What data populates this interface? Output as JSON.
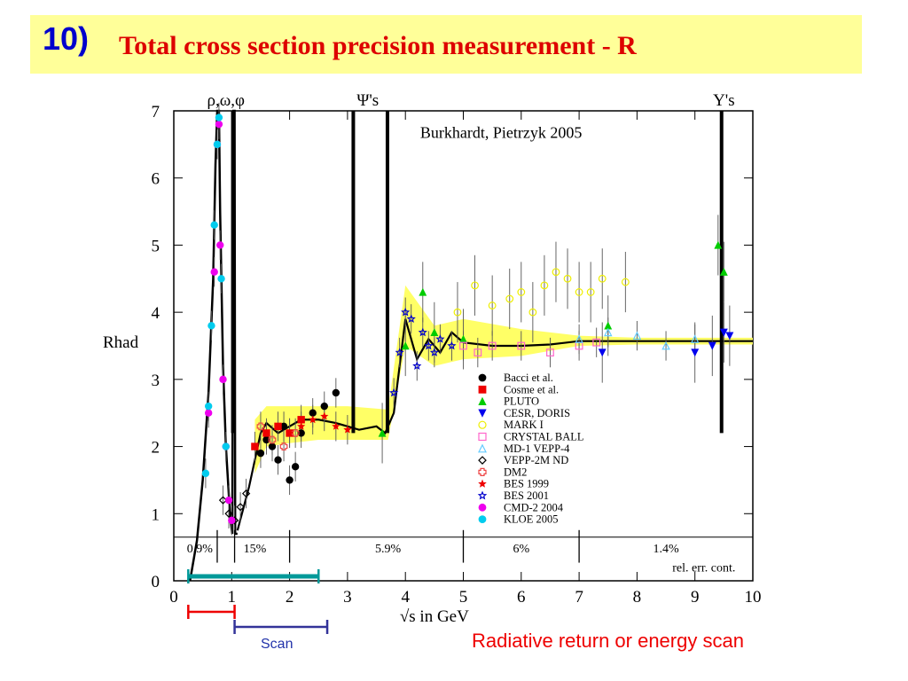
{
  "title": {
    "number": "10)",
    "text": "Total cross section precision measurement - R"
  },
  "chart_data": {
    "type": "scatter",
    "title": "Burkhardt, Pietrzyk 2005",
    "xlabel": "√s in GeV",
    "ylabel": "Rhad",
    "xlim": [
      0,
      10
    ],
    "ylim": [
      0,
      7
    ],
    "xticks": [
      0,
      1,
      2,
      3,
      4,
      5,
      6,
      7,
      8,
      9,
      10
    ],
    "yticks": [
      0,
      1,
      2,
      3,
      4,
      5,
      6,
      7
    ],
    "resonance_labels": [
      {
        "text": "ρ,ω,φ",
        "x": 0.9
      },
      {
        "text": "Ψ's",
        "x": 3.35
      },
      {
        "text": "Υ's",
        "x": 9.5
      }
    ],
    "error_contributions": {
      "label": "rel. err. cont.",
      "regions": [
        {
          "text": "0.9%",
          "x": 0.45
        },
        {
          "text": "15%",
          "x": 1.4
        },
        {
          "text": "5.9%",
          "x": 3.7
        },
        {
          "text": "6%",
          "x": 6.0
        },
        {
          "text": "1.4%",
          "x": 8.5
        }
      ],
      "dividers": [
        0.75,
        1.05,
        2.0,
        5.0,
        7.0
      ]
    },
    "legend": {
      "position": "center-right",
      "entries": [
        {
          "name": "Bacci et al.",
          "marker": "circle-filled",
          "color": "#000000"
        },
        {
          "name": "Cosme et al.",
          "marker": "square-filled",
          "color": "#ee0000"
        },
        {
          "name": "PLUTO",
          "marker": "triangle-up-filled",
          "color": "#00cc00"
        },
        {
          "name": "CESR, DORIS",
          "marker": "triangle-down-filled",
          "color": "#0000ee"
        },
        {
          "name": "MARK I",
          "marker": "circle-open",
          "color": "#eeee00"
        },
        {
          "name": "CRYSTAL BALL",
          "marker": "square-open",
          "color": "#ff66cc"
        },
        {
          "name": "MD-1 VEPP-4",
          "marker": "triangle-up-open",
          "color": "#66ccff"
        },
        {
          "name": "VEPP-2M ND",
          "marker": "diamond-open",
          "color": "#000000"
        },
        {
          "name": "DM2",
          "marker": "cross-open",
          "color": "#ee4444"
        },
        {
          "name": "BES 1999",
          "marker": "star-filled",
          "color": "#ee0000"
        },
        {
          "name": "BES 2001",
          "marker": "star-open",
          "color": "#0000cc"
        },
        {
          "name": "CMD-2 2004",
          "marker": "circle-filled",
          "color": "#ee00ee"
        },
        {
          "name": "KLOE 2005",
          "marker": "circle-filled",
          "color": "#00ccee"
        }
      ]
    },
    "theory_curve": {
      "x": [
        1.1,
        1.3,
        1.5,
        1.6,
        1.8,
        2.0,
        2.2,
        2.5,
        2.8,
        3.0,
        3.2,
        3.5,
        3.65,
        3.8,
        4.0,
        4.2,
        4.4,
        4.6,
        4.8,
        5.0,
        5.5,
        6.0,
        6.5,
        7.0,
        8.0,
        9.0,
        9.5,
        10.0
      ],
      "y": [
        0.75,
        1.4,
        2.2,
        2.35,
        2.2,
        2.3,
        2.4,
        2.4,
        2.35,
        2.3,
        2.25,
        2.3,
        2.2,
        2.5,
        3.9,
        3.3,
        3.6,
        3.4,
        3.7,
        3.55,
        3.5,
        3.5,
        3.52,
        3.57,
        3.57,
        3.57,
        3.57,
        3.57
      ],
      "color": "#000000"
    },
    "uncertainty_band": {
      "x": [
        1.4,
        1.6,
        2.0,
        2.5,
        3.0,
        3.7,
        4.0,
        4.5,
        5.0,
        6.0,
        7.0,
        8.0,
        10.0
      ],
      "lower": [
        1.6,
        2.0,
        2.05,
        2.1,
        2.1,
        2.1,
        3.5,
        3.2,
        3.3,
        3.35,
        3.5,
        3.52,
        3.52
      ],
      "upper": [
        2.4,
        2.6,
        2.6,
        2.6,
        2.6,
        2.55,
        4.4,
        3.8,
        3.9,
        3.75,
        3.65,
        3.62,
        3.62
      ],
      "color": "#ffff66"
    },
    "resonance_spikes": [
      {
        "x": 0.77,
        "note": "rho/omega peak off scale"
      },
      {
        "x": 1.02,
        "note": "phi peak"
      },
      {
        "x": 3.1,
        "note": "J/psi"
      },
      {
        "x": 3.69,
        "note": "psi(2S)"
      },
      {
        "x": 9.46,
        "note": "Upsilon"
      }
    ],
    "series": [
      {
        "name": "Bacci et al.",
        "x": [
          1.5,
          1.6,
          1.7,
          1.8,
          1.9,
          2.0,
          2.1,
          2.2,
          2.4,
          2.6,
          2.8
        ],
        "y": [
          1.9,
          2.1,
          2.0,
          1.8,
          2.3,
          1.5,
          1.7,
          2.2,
          2.5,
          2.6,
          2.8
        ]
      },
      {
        "name": "Cosme et al.",
        "x": [
          1.4,
          1.6,
          1.8,
          2.0,
          2.2
        ],
        "y": [
          2.0,
          2.2,
          2.3,
          2.2,
          2.4
        ]
      },
      {
        "name": "PLUTO",
        "x": [
          3.6,
          4.0,
          4.3,
          4.5,
          5.0,
          7.5,
          9.4,
          9.5
        ],
        "y": [
          2.2,
          3.5,
          4.3,
          3.7,
          3.6,
          3.8,
          5.0,
          4.6
        ]
      },
      {
        "name": "CESR, DORIS",
        "x": [
          7.4,
          9.0,
          9.3,
          9.5,
          9.6
        ],
        "y": [
          3.4,
          3.4,
          3.5,
          3.7,
          3.65
        ]
      },
      {
        "name": "MARK I",
        "x": [
          4.9,
          5.2,
          5.5,
          5.8,
          6.0,
          6.2,
          6.4,
          6.6,
          6.8,
          7.0,
          7.2,
          7.4,
          7.8
        ],
        "y": [
          4.0,
          4.4,
          4.1,
          4.2,
          4.3,
          4.0,
          4.4,
          4.6,
          4.5,
          4.3,
          4.3,
          4.5,
          4.45
        ]
      },
      {
        "name": "CRYSTAL BALL",
        "x": [
          5.0,
          5.25,
          5.5,
          6.0,
          6.5,
          7.0,
          7.3
        ],
        "y": [
          3.5,
          3.4,
          3.5,
          3.5,
          3.4,
          3.5,
          3.55
        ]
      },
      {
        "name": "MD-1 VEPP-4",
        "x": [
          7.0,
          7.5,
          8.0,
          8.5,
          9.0
        ],
        "y": [
          3.6,
          3.7,
          3.65,
          3.5,
          3.6
        ]
      },
      {
        "name": "VEPP-2M ND",
        "x": [
          0.85,
          0.95,
          1.05,
          1.15,
          1.25
        ],
        "y": [
          1.2,
          1.0,
          0.9,
          1.1,
          1.3
        ]
      },
      {
        "name": "DM2",
        "x": [
          1.5,
          1.7,
          1.9,
          2.1
        ],
        "y": [
          2.3,
          2.1,
          2.0,
          2.2
        ]
      },
      {
        "name": "BES 1999",
        "x": [
          2.0,
          2.2,
          2.4,
          2.6,
          2.8,
          3.0
        ],
        "y": [
          2.2,
          2.3,
          2.4,
          2.45,
          2.3,
          2.25
        ]
      },
      {
        "name": "BES 2001",
        "x": [
          3.8,
          3.9,
          4.0,
          4.1,
          4.2,
          4.3,
          4.4,
          4.5,
          4.6,
          4.8
        ],
        "y": [
          2.8,
          3.4,
          4.0,
          3.9,
          3.2,
          3.7,
          3.5,
          3.4,
          3.6,
          3.5
        ]
      },
      {
        "name": "CMD-2 2004",
        "x": [
          0.6,
          0.7,
          0.75,
          0.78,
          0.8,
          0.85,
          0.9,
          0.95,
          1.0
        ],
        "y": [
          2.5,
          4.6,
          6.5,
          6.8,
          5.0,
          3.0,
          2.0,
          1.2,
          0.9
        ]
      },
      {
        "name": "KLOE 2005",
        "x": [
          0.55,
          0.6,
          0.65,
          0.7,
          0.75,
          0.78,
          0.82,
          0.9
        ],
        "y": [
          1.6,
          2.6,
          3.8,
          5.3,
          6.5,
          6.9,
          4.5,
          2.0
        ]
      }
    ],
    "grid": false
  },
  "annotations": {
    "range_bars": [
      {
        "from": 0.25,
        "to": 2.5,
        "color": "#009999"
      },
      {
        "from": 0.25,
        "to": 1.05,
        "color": "#ee0000"
      },
      {
        "from": 1.05,
        "to": 2.65,
        "color": "#333399"
      }
    ],
    "scan_label": "Scan",
    "method_label": "Radiative return or energy scan"
  }
}
